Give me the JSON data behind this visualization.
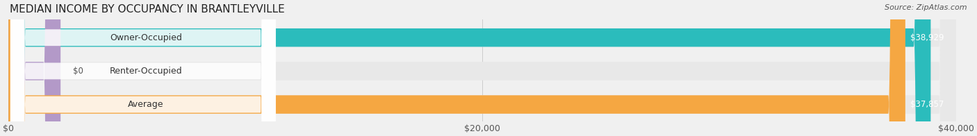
{
  "title": "MEDIAN INCOME BY OCCUPANCY IN BRANTLEYVILLE",
  "source": "Source: ZipAtlas.com",
  "categories": [
    "Owner-Occupied",
    "Renter-Occupied",
    "Average"
  ],
  "values": [
    38929,
    0,
    37857
  ],
  "bar_colors": [
    "#2bbcbc",
    "#b399c8",
    "#f5a742"
  ],
  "value_labels": [
    "$38,929",
    "$0",
    "$37,857"
  ],
  "xlim": [
    0,
    40000
  ],
  "xticks": [
    0,
    20000,
    40000
  ],
  "xtick_labels": [
    "$0",
    "$20,000",
    "$40,000"
  ],
  "background_color": "#f0f0f0",
  "bar_background_color": "#e8e8e8",
  "bar_height": 0.55,
  "title_fontsize": 11,
  "label_fontsize": 9,
  "value_fontsize": 8.5,
  "source_fontsize": 8
}
